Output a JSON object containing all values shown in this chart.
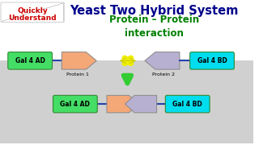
{
  "title": "Yeast Two Hybrid System",
  "subtitle": "Protein – Protein\ninteraction",
  "watermark_line1": "Quickly",
  "watermark_line2": "Understand",
  "title_color": "#00008B",
  "subtitle_color": "#008000",
  "watermark_color": "#cc0000",
  "gal4ad_color": "#44dd66",
  "gal4bd_color": "#00ddee",
  "protein1_color": "#f4a878",
  "protein2_color": "#b8b0d0",
  "arrow_yellow": "#eeee00",
  "arrow_yellow_edge": "#cccc00",
  "arrow_green": "#33cc33",
  "connector_color": "#2244aa",
  "bg_color": "#c8c8c8"
}
